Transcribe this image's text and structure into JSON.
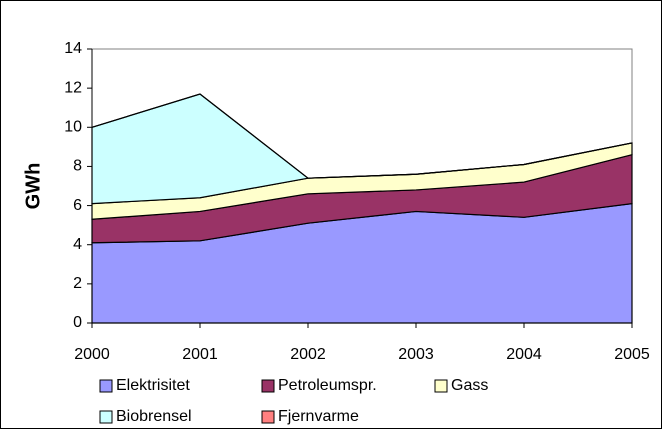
{
  "chart_data": {
    "type": "stacked_area",
    "y_label": "GWh",
    "x": [
      2000,
      2001,
      2002,
      2003,
      2004,
      2005
    ],
    "xlim": [
      2000,
      2005
    ],
    "xticks": [
      2000,
      2001,
      2002,
      2003,
      2004,
      2005
    ],
    "ylim": [
      0,
      14
    ],
    "yticks": [
      0,
      2,
      4,
      6,
      8,
      10,
      12,
      14
    ],
    "series": [
      {
        "name": "Elektrisitet",
        "color": "#9999ff",
        "values": [
          4.1,
          4.2,
          5.1,
          5.7,
          5.4,
          6.1
        ]
      },
      {
        "name": "Petroleumspr.",
        "color": "#993366",
        "values": [
          1.2,
          1.5,
          1.5,
          1.1,
          1.8,
          2.5
        ]
      },
      {
        "name": "Gass",
        "color": "#ffffcc",
        "values": [
          0.8,
          0.7,
          0.8,
          0.8,
          0.9,
          0.6
        ]
      },
      {
        "name": "Biobrensel",
        "color": "#ccffff",
        "values": [
          3.9,
          5.3,
          0,
          0,
          0,
          0
        ]
      },
      {
        "name": "Fjernvarme",
        "color": "#ff8080",
        "values": [
          0,
          0,
          0,
          0,
          0,
          0
        ]
      }
    ]
  }
}
